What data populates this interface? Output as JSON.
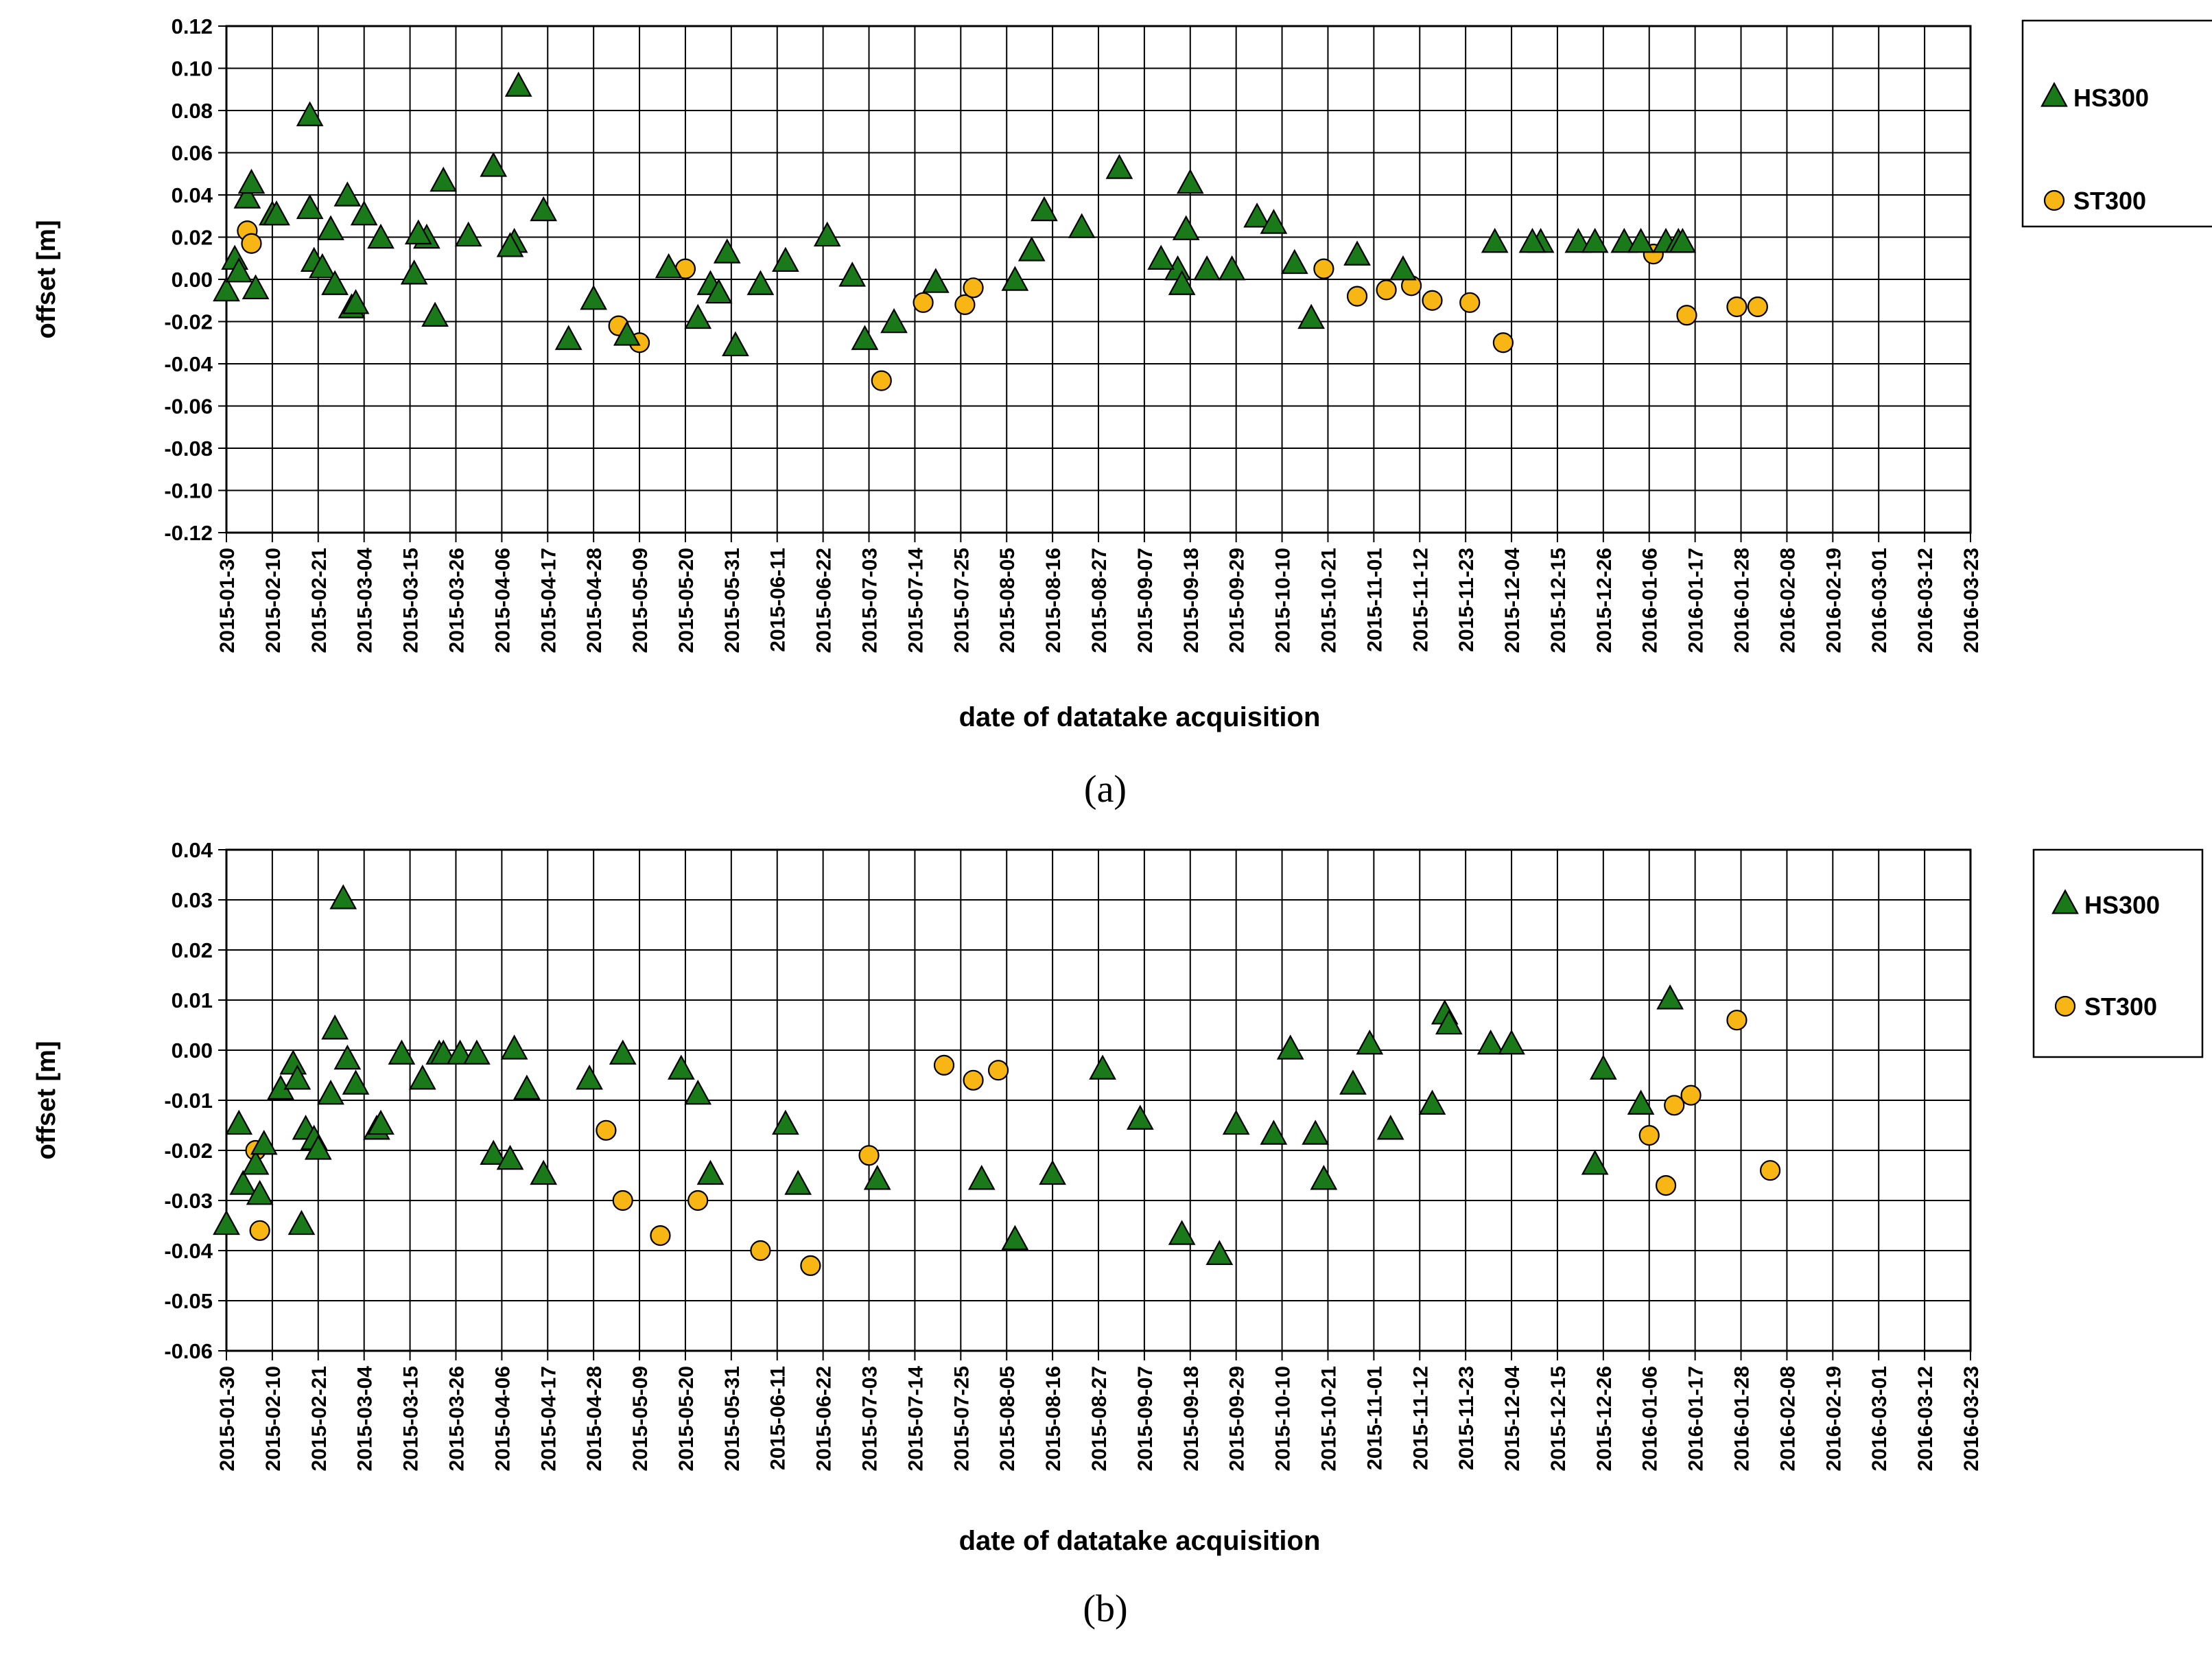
{
  "chart_data": [
    {
      "type": "scatter",
      "caption": "(a)",
      "xlabel": "date of datatake acquisition",
      "ylabel": "offset [m]",
      "ylim": [
        -0.12,
        0.12
      ],
      "ystep": 0.02,
      "ydecimals": 2,
      "grid": true,
      "legend": "right",
      "tick_labels": [
        "2015-01-30",
        "2015-02-10",
        "2015-02-21",
        "2015-03-04",
        "2015-03-15",
        "2015-03-26",
        "2015-04-06",
        "2015-04-17",
        "2015-04-28",
        "2015-05-09",
        "2015-05-20",
        "2015-05-31",
        "2015-06-11",
        "2015-06-22",
        "2015-07-03",
        "2015-07-14",
        "2015-07-25",
        "2015-08-05",
        "2015-08-16",
        "2015-08-27",
        "2015-09-07",
        "2015-09-18",
        "2015-09-29",
        "2015-10-10",
        "2015-10-21",
        "2015-11-01",
        "2015-11-12",
        "2015-11-23",
        "2015-12-04",
        "2015-12-15",
        "2015-12-26",
        "2016-01-06",
        "2016-01-17",
        "2016-01-28",
        "2016-02-08",
        "2016-02-19",
        "2016-03-01",
        "2016-03-12",
        "2016-03-23"
      ],
      "x_unit": "days since 2015-01-30",
      "series": [
        {
          "name": "HS300",
          "marker": "triangle",
          "color": "#1a7a1a",
          "x": [
            0,
            2,
            3,
            5,
            6,
            7,
            11,
            12,
            20,
            20,
            21,
            25,
            23,
            26,
            30,
            31,
            29,
            33,
            37,
            45,
            48,
            46,
            50,
            52,
            58,
            64,
            70,
            69,
            68,
            76,
            82,
            88,
            96,
            106,
            113,
            116,
            120,
            118,
            122,
            128,
            134,
            144,
            150,
            153,
            160,
            170,
            189,
            193,
            196,
            205,
            214,
            228,
            231,
            229,
            224,
            230,
            235,
            241,
            247,
            251,
            256,
            260,
            271,
            282,
            304,
            315,
            313,
            324,
            328,
            335,
            339,
            345,
            348,
            349
          ],
          "y": [
            -0.006,
            0.009,
            0.003,
            0.038,
            0.045,
            -0.005,
            0.03,
            0.03,
            0.033,
            0.077,
            0.008,
            0.023,
            0.005,
            -0.003,
            -0.014,
            -0.012,
            0.039,
            0.03,
            0.019,
            0.002,
            0.019,
            0.021,
            -0.018,
            0.046,
            0.02,
            0.053,
            0.091,
            0.017,
            0.015,
            0.032,
            -0.029,
            -0.01,
            -0.027,
            0.005,
            -0.019,
            -0.003,
            0.012,
            -0.007,
            -0.032,
            -0.003,
            0.008,
            0.02,
            0.001,
            -0.029,
            -0.021,
            -0.002,
            -0.001,
            0.013,
            0.032,
            0.024,
            0.052,
            0.004,
            0.045,
            -0.003,
            0.009,
            0.023,
            0.004,
            0.004,
            0.029,
            0.026,
            0.007,
            -0.019,
            0.011,
            0.004,
            0.017,
            0.017,
            0.017,
            0.017,
            0.017,
            0.017,
            0.017,
            0.017,
            0.017,
            0.017
          ]
        },
        {
          "name": "ST300",
          "marker": "circle",
          "color": "#f8b614",
          "x": [
            5,
            6,
            94,
            99,
            110,
            157,
            167,
            177,
            179,
            263,
            271,
            278,
            284,
            289,
            298,
            306,
            342,
            350,
            362,
            367
          ],
          "y": [
            0.023,
            0.017,
            -0.022,
            -0.03,
            0.005,
            -0.048,
            -0.011,
            -0.012,
            -0.004,
            0.005,
            -0.008,
            -0.005,
            -0.003,
            -0.01,
            -0.011,
            -0.03,
            0.012,
            -0.017,
            -0.013,
            -0.013
          ]
        }
      ]
    },
    {
      "type": "scatter",
      "caption": "(b)",
      "xlabel": "date of datatake acquisition",
      "ylabel": "offset [m]",
      "ylim": [
        -0.06,
        0.04
      ],
      "ystep": 0.01,
      "ydecimals": 2,
      "grid": true,
      "legend": "right",
      "tick_labels": [
        "2015-01-30",
        "2015-02-10",
        "2015-02-21",
        "2015-03-04",
        "2015-03-15",
        "2015-03-26",
        "2015-04-06",
        "2015-04-17",
        "2015-04-28",
        "2015-05-09",
        "2015-05-20",
        "2015-05-31",
        "2015-06-11",
        "2015-06-22",
        "2015-07-03",
        "2015-07-14",
        "2015-07-25",
        "2015-08-05",
        "2015-08-16",
        "2015-08-27",
        "2015-09-07",
        "2015-09-18",
        "2015-09-29",
        "2015-10-10",
        "2015-10-21",
        "2015-11-01",
        "2015-11-12",
        "2015-11-23",
        "2015-12-04",
        "2015-12-15",
        "2015-12-26",
        "2016-01-06",
        "2016-01-17",
        "2016-01-28",
        "2016-02-08",
        "2016-02-19",
        "2016-03-01",
        "2016-03-12",
        "2016-03-23"
      ],
      "x_unit": "days since 2015-01-30",
      "series": [
        {
          "name": "HS300",
          "marker": "triangle",
          "color": "#1a7a1a",
          "x": [
            0,
            3,
            4,
            7,
            8,
            9,
            13,
            16,
            17,
            18,
            19,
            21,
            22,
            25,
            26,
            28,
            29,
            31,
            36,
            37,
            42,
            47,
            51,
            52,
            56,
            60,
            64,
            68,
            69,
            72,
            76,
            87,
            95,
            109,
            113,
            116,
            134,
            137,
            156,
            181,
            189,
            198,
            210,
            219,
            229,
            238,
            242,
            251,
            255,
            261,
            263,
            270,
            274,
            279,
            289,
            292,
            293,
            303,
            308,
            328,
            330,
            339,
            346
          ],
          "y": [
            -0.035,
            -0.015,
            -0.027,
            -0.023,
            -0.029,
            -0.019,
            -0.008,
            -0.003,
            -0.006,
            -0.035,
            -0.016,
            -0.018,
            -0.02,
            -0.009,
            0.004,
            0.03,
            -0.002,
            -0.007,
            -0.016,
            -0.015,
            -0.001,
            -0.006,
            -0.001,
            -0.001,
            -0.001,
            -0.001,
            -0.021,
            -0.022,
            0.0,
            -0.008,
            -0.025,
            -0.006,
            -0.001,
            -0.004,
            -0.009,
            -0.025,
            -0.015,
            -0.027,
            -0.026,
            -0.026,
            -0.038,
            -0.025,
            -0.004,
            -0.014,
            -0.037,
            -0.041,
            -0.015,
            -0.017,
            0.0,
            -0.017,
            -0.026,
            -0.007,
            0.001,
            -0.016,
            -0.011,
            0.007,
            0.005,
            0.001,
            0.001,
            -0.023,
            -0.004,
            -0.011,
            0.01
          ]
        },
        {
          "name": "ST300",
          "marker": "circle",
          "color": "#f8b614",
          "x": [
            7,
            8,
            91,
            95,
            104,
            113,
            128,
            140,
            154,
            172,
            179,
            185,
            341,
            345,
            347,
            351,
            362,
            370
          ],
          "y": [
            -0.02,
            -0.036,
            -0.016,
            -0.03,
            -0.037,
            -0.03,
            -0.04,
            -0.043,
            -0.021,
            -0.003,
            -0.006,
            -0.004,
            -0.017,
            -0.027,
            -0.011,
            -0.009,
            0.006,
            -0.024
          ]
        }
      ]
    }
  ]
}
